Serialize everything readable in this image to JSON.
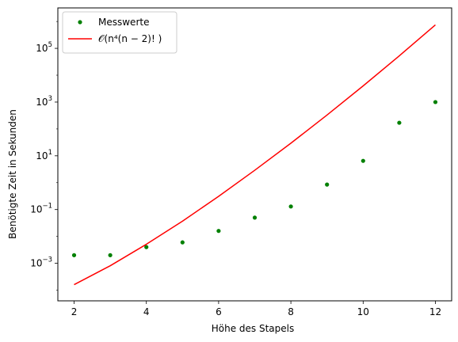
{
  "chart_data": {
    "type": "line",
    "xlabel": "Höhe des Stapels",
    "ylabel": "Benötigte Zeit in Sekunden",
    "xlim": [
      1.55,
      12.45
    ],
    "ylim": [
      4e-05,
      3200000.0
    ],
    "yscale": "log",
    "grid": false,
    "legend": "top-left",
    "x_ticks": [
      2,
      4,
      6,
      8,
      10,
      12
    ],
    "x_tick_labels": [
      "2",
      "4",
      "6",
      "8",
      "10",
      "12"
    ],
    "y_ticks": [
      0.001,
      0.1,
      10,
      1000,
      100000
    ],
    "y_tick_labels": [
      {
        "base": "10",
        "exp": "−3"
      },
      {
        "base": "10",
        "exp": "−1"
      },
      {
        "base": "10",
        "exp": "1"
      },
      {
        "base": "10",
        "exp": "3"
      },
      {
        "base": "10",
        "exp": "5"
      }
    ],
    "series": [
      {
        "name": "Messwerte",
        "kind": "scatter",
        "color": "#008000",
        "x": [
          2,
          3,
          4,
          5,
          6,
          7,
          8,
          9,
          10,
          11,
          12
        ],
        "y": [
          0.002,
          0.002,
          0.004,
          0.006,
          0.016,
          0.05,
          0.13,
          0.85,
          6.5,
          170,
          1000
        ]
      },
      {
        "name": "𝒪(n⁴(n − 2)! )",
        "kind": "line",
        "color": "#ff0000",
        "x": [
          2,
          3,
          4,
          5,
          6,
          7,
          8,
          9,
          10,
          11,
          12
        ],
        "y": [
          0.00016,
          0.00081,
          0.0051,
          0.037,
          0.31,
          2.9,
          29.5,
          330,
          4000,
          52700,
          746000
        ]
      }
    ]
  }
}
